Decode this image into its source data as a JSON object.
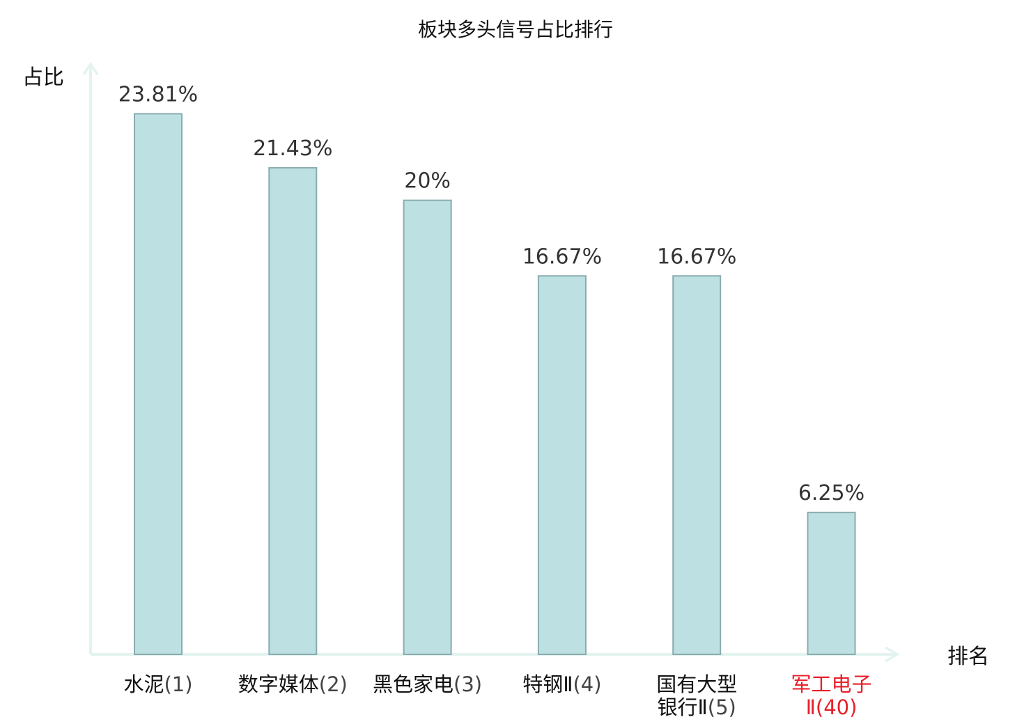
{
  "chart_data": {
    "type": "bar",
    "title": "板块多头信号占比排行",
    "ylabel": "占比",
    "xlabel": "排名",
    "ylim": [
      0,
      26
    ],
    "grid": false,
    "legend": "none",
    "categories": [
      {
        "lines": [
          {
            "name": "水泥",
            "rank": "(1)"
          }
        ],
        "highlight": false
      },
      {
        "lines": [
          {
            "name": "数字媒体",
            "rank": "(2)"
          }
        ],
        "highlight": false
      },
      {
        "lines": [
          {
            "name": "黑色家电",
            "rank": "(3)"
          }
        ],
        "highlight": false
      },
      {
        "lines": [
          {
            "name": "特钢Ⅱ",
            "rank": "(4)"
          }
        ],
        "highlight": false
      },
      {
        "lines": [
          {
            "name": "国有大型",
            "rank": ""
          },
          {
            "name": "银行Ⅱ",
            "rank": "(5)"
          }
        ],
        "highlight": false
      },
      {
        "lines": [
          {
            "name": "军工电子",
            "rank": ""
          },
          {
            "name": "Ⅱ",
            "rank": "(40)"
          }
        ],
        "highlight": true
      }
    ],
    "values": [
      23.81,
      21.43,
      20,
      16.67,
      16.67,
      6.25
    ],
    "value_labels": [
      "23.81%",
      "21.43%",
      "20%",
      "16.67%",
      "16.67%",
      "6.25%"
    ],
    "colors": {
      "bar_fill": "#bde0e3",
      "bar_stroke": "#8aabad",
      "axis": "#e3f3f0",
      "highlight_label": "#e8202a",
      "value_text": "#333333"
    }
  }
}
